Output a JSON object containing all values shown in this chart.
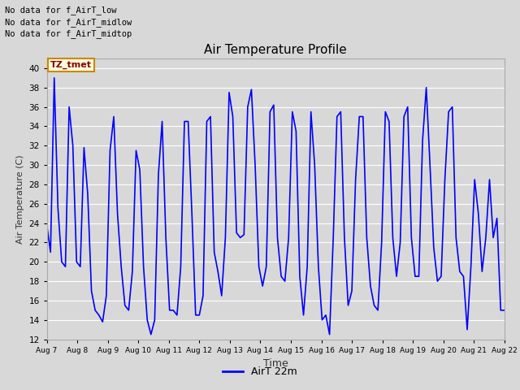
{
  "title": "Air Temperature Profile",
  "xlabel": "Time",
  "ylabel": "Air Temperature (C)",
  "ylim": [
    12,
    41
  ],
  "yticks": [
    12,
    14,
    16,
    18,
    20,
    22,
    24,
    26,
    28,
    30,
    32,
    34,
    36,
    38,
    40
  ],
  "line_color": "blue",
  "line_width": 1.2,
  "legend_label": "AirT 22m",
  "legend_line_color": "blue",
  "background_color": "#d8d8d8",
  "plot_bg_color": "#d8d8d8",
  "annotations": [
    "No data for f_AirT_low",
    "No data for f_AirT_midlow",
    "No data for f_AirT_midtop"
  ],
  "tz_label": "TZ_tmet",
  "x_tick_labels": [
    "Aug 7",
    "Aug 8",
    "Aug 9",
    "Aug 10",
    "Aug 11",
    "Aug 12",
    "Aug 13",
    "Aug 14",
    "Aug 15",
    "Aug 16",
    "Aug 17",
    "Aug 18",
    "Aug 19",
    "Aug 20",
    "Aug 21",
    "Aug 22"
  ],
  "temperature_data": [
    23.8,
    21.0,
    39.0,
    25.5,
    20.0,
    19.5,
    36.0,
    32.0,
    20.0,
    19.5,
    31.8,
    27.0,
    17.0,
    15.0,
    14.5,
    13.8,
    16.5,
    31.5,
    35.0,
    25.0,
    19.5,
    15.5,
    15.0,
    19.0,
    31.5,
    29.5,
    19.5,
    14.0,
    12.5,
    14.0,
    29.0,
    34.5,
    22.5,
    15.0,
    15.0,
    14.5,
    19.5,
    34.5,
    34.5,
    25.0,
    14.5,
    14.5,
    16.5,
    34.5,
    35.0,
    21.0,
    19.0,
    16.5,
    22.5,
    37.5,
    35.0,
    23.0,
    22.5,
    22.8,
    36.0,
    37.8,
    30.0,
    19.5,
    17.5,
    19.5,
    35.5,
    36.2,
    22.5,
    18.5,
    18.0,
    22.5,
    35.5,
    33.5,
    18.5,
    14.5,
    19.5,
    35.5,
    30.0,
    19.5,
    14.0,
    14.5,
    12.5,
    22.5,
    35.0,
    35.5,
    22.5,
    15.5,
    17.0,
    28.5,
    35.0,
    35.0,
    22.5,
    17.5,
    15.5,
    15.0,
    22.0,
    35.5,
    34.5,
    22.5,
    18.5,
    22.0,
    35.0,
    36.0,
    22.5,
    18.5,
    18.5,
    32.5,
    38.0,
    30.0,
    21.5,
    18.0,
    18.5,
    28.5,
    35.5,
    36.0,
    22.5,
    19.0,
    18.5,
    13.0,
    19.5,
    28.5,
    25.0,
    19.0,
    22.5,
    28.5,
    22.5,
    24.5,
    15.0,
    15.0
  ]
}
